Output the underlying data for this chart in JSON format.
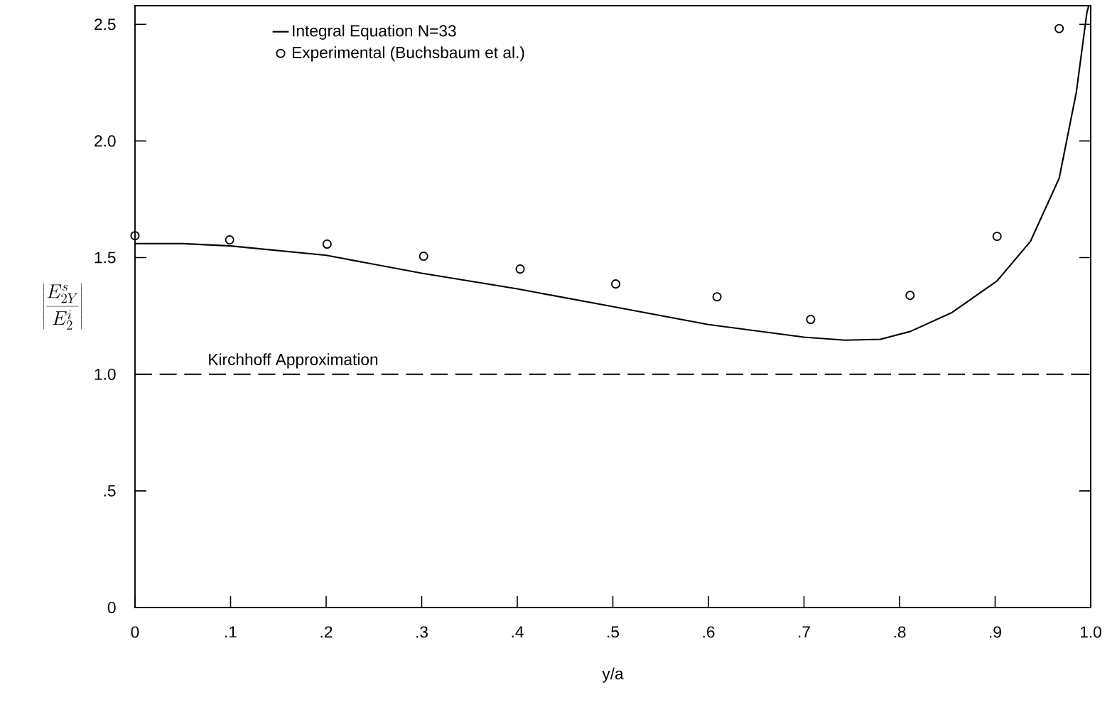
{
  "chart_data": {
    "type": "line",
    "xlabel": "y/a",
    "ylabel": "\\left|\\frac{E^{s}_{2Y}}{E^{i}_{2}}\\right|",
    "xlim": [
      0,
      1.0
    ],
    "ylim": [
      0,
      2.58
    ],
    "xticks": [
      {
        "value": 0,
        "label": "0"
      },
      {
        "value": 0.1,
        "label": ".1"
      },
      {
        "value": 0.2,
        "label": ".2"
      },
      {
        "value": 0.3,
        "label": ".3"
      },
      {
        "value": 0.4,
        "label": ".4"
      },
      {
        "value": 0.5,
        "label": ".5"
      },
      {
        "value": 0.6,
        "label": ".6"
      },
      {
        "value": 0.7,
        "label": ".7"
      },
      {
        "value": 0.8,
        "label": ".8"
      },
      {
        "value": 0.9,
        "label": ".9"
      },
      {
        "value": 1.0,
        "label": "1.0"
      }
    ],
    "yticks": [
      {
        "value": 0,
        "label": "0"
      },
      {
        "value": 0.5,
        "label": ".5"
      },
      {
        "value": 1.0,
        "label": "1.0"
      },
      {
        "value": 1.5,
        "label": "1.5"
      },
      {
        "value": 2.0,
        "label": "2.0"
      },
      {
        "value": 2.5,
        "label": "2.5"
      }
    ],
    "grid": false,
    "legend": "top left",
    "series": [
      {
        "name": "Integral Equation  N=33",
        "color": "#000000",
        "line_style": "solid",
        "x": [
          0,
          0.05,
          0.1,
          0.2,
          0.3,
          0.4,
          0.5,
          0.6,
          0.7,
          0.743,
          0.78,
          0.811,
          0.855,
          0.902,
          0.937,
          0.967,
          0.985,
          0.996,
          0.998
        ],
        "values": [
          1.56,
          1.56,
          1.55,
          1.51,
          1.433,
          1.366,
          1.29,
          1.213,
          1.159,
          1.146,
          1.15,
          1.183,
          1.265,
          1.4,
          1.57,
          1.84,
          2.21,
          2.55,
          2.58
        ]
      },
      {
        "name": "Experimental (Buchsbaum et al.)",
        "type": "scatter",
        "marker": "circle",
        "color": "#000000",
        "x": [
          0,
          0.099,
          0.201,
          0.302,
          0.403,
          0.503,
          0.609,
          0.707,
          0.811,
          0.902,
          0.967
        ],
        "values": [
          1.594,
          1.576,
          1.558,
          1.506,
          1.451,
          1.387,
          1.332,
          1.235,
          1.338,
          1.591,
          2.482
        ]
      }
    ],
    "ref_lines": [
      {
        "axis": "y",
        "value": 1.0,
        "label": "Kirchhoff Approximation",
        "line_style": "dashed",
        "color": "#000000"
      }
    ]
  }
}
